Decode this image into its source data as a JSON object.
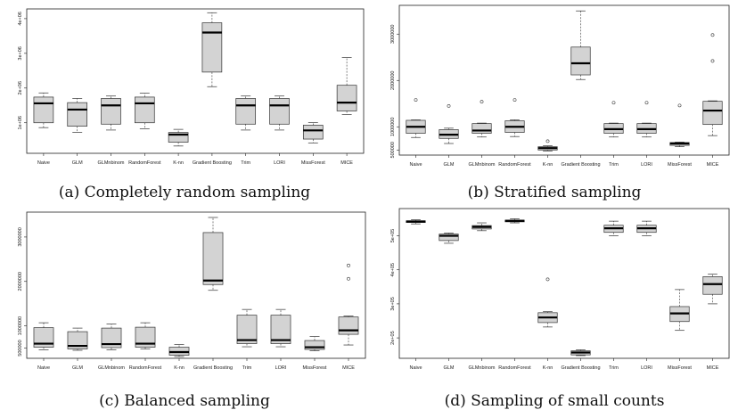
{
  "colors": {
    "box_fill": "#d3d3d3",
    "box_stroke": "#333333",
    "median": "#000000",
    "frame": "#222222"
  },
  "chart_data": [
    {
      "type": "boxplot",
      "caption": "(a) Completely random sampling",
      "categories": [
        "Naive",
        "GLM",
        "GLMnbinom",
        "RandomForest",
        "K-nn",
        "Gradient Boosting",
        "Trim",
        "LORI",
        "MissForest",
        "MICE"
      ],
      "yticks": [
        {
          "v": 1000000,
          "label": "1e+06"
        },
        {
          "v": 2000000,
          "label": "2e+06"
        },
        {
          "v": 3000000,
          "label": "3e+06"
        },
        {
          "v": 4000000,
          "label": "4e+06"
        }
      ],
      "ylim": [
        120000,
        4280000
      ],
      "boxes": [
        {
          "whislo": 860000,
          "q1": 1000000,
          "med": 1560000,
          "q3": 1740000,
          "whishi": 1860000,
          "fliers": []
        },
        {
          "whislo": 720000,
          "q1": 900000,
          "med": 1380000,
          "q3": 1580000,
          "whishi": 1700000,
          "fliers": []
        },
        {
          "whislo": 790000,
          "q1": 960000,
          "med": 1500000,
          "q3": 1700000,
          "whishi": 1770000,
          "fliers": []
        },
        {
          "whislo": 830000,
          "q1": 1000000,
          "med": 1560000,
          "q3": 1740000,
          "whishi": 1850000,
          "fliers": []
        },
        {
          "whislo": 330000,
          "q1": 440000,
          "med": 660000,
          "q3": 720000,
          "whishi": 810000,
          "fliers": []
        },
        {
          "whislo": 2040000,
          "q1": 2460000,
          "med": 3600000,
          "q3": 3880000,
          "whishi": 4170000,
          "fliers": []
        },
        {
          "whislo": 790000,
          "q1": 960000,
          "med": 1500000,
          "q3": 1700000,
          "whishi": 1770000,
          "fliers": []
        },
        {
          "whislo": 790000,
          "q1": 960000,
          "med": 1500000,
          "q3": 1700000,
          "whishi": 1770000,
          "fliers": []
        },
        {
          "whislo": 420000,
          "q1": 530000,
          "med": 780000,
          "q3": 930000,
          "whishi": 1010000,
          "fliers": []
        },
        {
          "whislo": 1240000,
          "q1": 1340000,
          "med": 1580000,
          "q3": 2080000,
          "whishi": 2880000,
          "fliers": []
        }
      ]
    },
    {
      "type": "boxplot",
      "caption": "(b) Stratified sampling",
      "categories": [
        "Naive",
        "GLM",
        "GLMnbinom",
        "RandomForest",
        "K-nn",
        "Gradient Boosting",
        "Trim",
        "LORI",
        "MissForest",
        "MICE"
      ],
      "yticks": [
        {
          "v": 500000,
          "label": "500000"
        },
        {
          "v": 1000000,
          "label": "1000000"
        },
        {
          "v": 2000000,
          "label": "2000000"
        },
        {
          "v": 3000000,
          "label": "3000000"
        }
      ],
      "ylim": [
        390000,
        3620000
      ],
      "boxes": [
        {
          "whislo": 770000,
          "q1": 860000,
          "med": 1000000,
          "q3": 1140000,
          "whishi": 1150000,
          "fliers": [
            1580000
          ]
        },
        {
          "whislo": 640000,
          "q1": 750000,
          "med": 830000,
          "q3": 940000,
          "whishi": 970000,
          "fliers": [
            1450000
          ]
        },
        {
          "whislo": 780000,
          "q1": 860000,
          "med": 920000,
          "q3": 1070000,
          "whishi": 1080000,
          "fliers": [
            1540000
          ]
        },
        {
          "whislo": 790000,
          "q1": 880000,
          "med": 1000000,
          "q3": 1130000,
          "whishi": 1150000,
          "fliers": [
            1580000
          ]
        },
        {
          "whislo": 480000,
          "q1": 500000,
          "med": 540000,
          "q3": 570000,
          "whishi": 590000,
          "fliers": [
            690000
          ]
        },
        {
          "whislo": 2020000,
          "q1": 2120000,
          "med": 2370000,
          "q3": 2720000,
          "whishi": 3500000,
          "fliers": []
        },
        {
          "whislo": 780000,
          "q1": 860000,
          "med": 950000,
          "q3": 1070000,
          "whishi": 1080000,
          "fliers": [
            1520000
          ]
        },
        {
          "whislo": 780000,
          "q1": 860000,
          "med": 950000,
          "q3": 1070000,
          "whishi": 1080000,
          "fliers": [
            1520000
          ]
        },
        {
          "whislo": 570000,
          "q1": 600000,
          "med": 640000,
          "q3": 660000,
          "whishi": 670000,
          "fliers": [
            1460000
          ]
        },
        {
          "whislo": 810000,
          "q1": 1050000,
          "med": 1350000,
          "q3": 1550000,
          "whishi": 1560000,
          "fliers": [
            2980000,
            2420000
          ]
        }
      ]
    },
    {
      "type": "boxplot",
      "caption": "(c) Balanced sampling",
      "categories": [
        "Naive",
        "GLM",
        "GLMnbinom",
        "RandomForest",
        "K-nn",
        "Gradient Boosting",
        "Trim",
        "LORI",
        "MissForest",
        "MICE"
      ],
      "yticks": [
        {
          "v": 500000,
          "label": "500000"
        },
        {
          "v": 1000000,
          "label": "1000000"
        },
        {
          "v": 2000000,
          "label": "2000000"
        },
        {
          "v": 3000000,
          "label": "3000000"
        }
      ],
      "ylim": [
        270000,
        3560000
      ],
      "boxes": [
        {
          "whislo": 460000,
          "q1": 520000,
          "med": 600000,
          "q3": 960000,
          "whishi": 1070000,
          "fliers": []
        },
        {
          "whislo": 450000,
          "q1": 480000,
          "med": 550000,
          "q3": 870000,
          "whishi": 950000,
          "fliers": []
        },
        {
          "whislo": 460000,
          "q1": 510000,
          "med": 590000,
          "q3": 950000,
          "whishi": 1040000,
          "fliers": []
        },
        {
          "whislo": 480000,
          "q1": 520000,
          "med": 600000,
          "q3": 970000,
          "whishi": 1070000,
          "fliers": []
        },
        {
          "whislo": 310000,
          "q1": 340000,
          "med": 410000,
          "q3": 520000,
          "whishi": 580000,
          "fliers": []
        },
        {
          "whislo": 1800000,
          "q1": 1930000,
          "med": 2020000,
          "q3": 3100000,
          "whishi": 3440000,
          "fliers": []
        },
        {
          "whislo": 530000,
          "q1": 600000,
          "med": 680000,
          "q3": 1240000,
          "whishi": 1370000,
          "fliers": []
        },
        {
          "whislo": 530000,
          "q1": 600000,
          "med": 680000,
          "q3": 1240000,
          "whishi": 1370000,
          "fliers": []
        },
        {
          "whislo": 440000,
          "q1": 470000,
          "med": 520000,
          "q3": 670000,
          "whishi": 760000,
          "fliers": []
        },
        {
          "whislo": 570000,
          "q1": 810000,
          "med": 900000,
          "q3": 1200000,
          "whishi": 1220000,
          "fliers": [
            2360000,
            2060000
          ]
        }
      ]
    },
    {
      "type": "boxplot",
      "caption": "(d) Sampling of small counts",
      "categories": [
        "Naive",
        "GLM",
        "GLMnbinom",
        "RandomForest",
        "K-nn",
        "Gradient Boosting",
        "Trim",
        "LORI",
        "MissForest",
        "MICE"
      ],
      "yticks": [
        {
          "v": 200000,
          "label": "2e+05"
        },
        {
          "v": 300000,
          "label": "3e+05"
        },
        {
          "v": 400000,
          "label": "4e+05"
        },
        {
          "v": 500000,
          "label": "5e+05"
        }
      ],
      "ylim": [
        140000,
        580000
      ],
      "boxes": [
        {
          "whislo": 535000,
          "q1": 539000,
          "med": 542000,
          "q3": 544000,
          "whishi": 547000,
          "fliers": []
        },
        {
          "whislo": 478000,
          "q1": 486000,
          "med": 500000,
          "q3": 505000,
          "whishi": 508000,
          "fliers": []
        },
        {
          "whislo": 515000,
          "q1": 520000,
          "med": 526000,
          "q3": 530000,
          "whishi": 538000,
          "fliers": []
        },
        {
          "whislo": 538000,
          "q1": 541000,
          "med": 544000,
          "q3": 546000,
          "whishi": 550000,
          "fliers": []
        },
        {
          "whislo": 232000,
          "q1": 245000,
          "med": 260000,
          "q3": 274000,
          "whishi": 277000,
          "fliers": [
            372000
          ]
        },
        {
          "whislo": 148000,
          "q1": 150000,
          "med": 157000,
          "q3": 162000,
          "whishi": 165000,
          "fliers": []
        },
        {
          "whislo": 500000,
          "q1": 510000,
          "med": 522000,
          "q3": 531000,
          "whishi": 543000,
          "fliers": []
        },
        {
          "whislo": 500000,
          "q1": 510000,
          "med": 522000,
          "q3": 531000,
          "whishi": 543000,
          "fliers": []
        },
        {
          "whislo": 222000,
          "q1": 248000,
          "med": 272000,
          "q3": 292000,
          "whishi": 342000,
          "fliers": []
        },
        {
          "whislo": 300000,
          "q1": 328000,
          "med": 358000,
          "q3": 380000,
          "whishi": 387000,
          "fliers": []
        }
      ]
    }
  ]
}
